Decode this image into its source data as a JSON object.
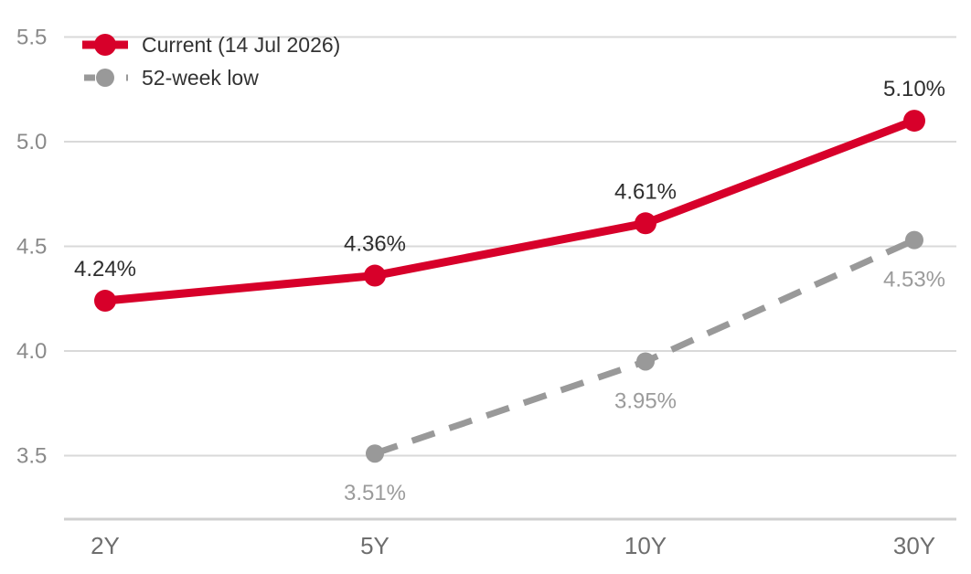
{
  "chart_data": {
    "type": "line",
    "categories": [
      "2Y",
      "5Y",
      "10Y",
      "30Y"
    ],
    "ylim": [
      3.2,
      5.5
    ],
    "yticks": [
      {
        "value": 3.5,
        "label": "3.5"
      },
      {
        "value": 4.0,
        "label": "4.0"
      },
      {
        "value": 4.5,
        "label": "4.5"
      },
      {
        "value": 5.0,
        "label": "5.0"
      },
      {
        "value": 5.5,
        "label": "5.5"
      }
    ],
    "grid": true,
    "legend_position": "top-left",
    "series": [
      {
        "name": "Current (14 Jul 2026)",
        "color": "#d7002a",
        "style": "solid",
        "label_position": "above",
        "points": [
          {
            "category": "2Y",
            "value": 4.24,
            "label": "4.24%"
          },
          {
            "category": "5Y",
            "value": 4.36,
            "label": "4.36%"
          },
          {
            "category": "10Y",
            "value": 4.61,
            "label": "4.61%"
          },
          {
            "category": "30Y",
            "value": 5.1,
            "label": "5.10%"
          }
        ]
      },
      {
        "name": "52-week low",
        "color": "#999999",
        "style": "dashed",
        "label_position": "below",
        "points": [
          {
            "category": "5Y",
            "value": 3.51,
            "label": "3.51%"
          },
          {
            "category": "10Y",
            "value": 3.95,
            "label": "3.95%"
          },
          {
            "category": "30Y",
            "value": 4.53,
            "label": "4.53%"
          }
        ]
      }
    ]
  }
}
